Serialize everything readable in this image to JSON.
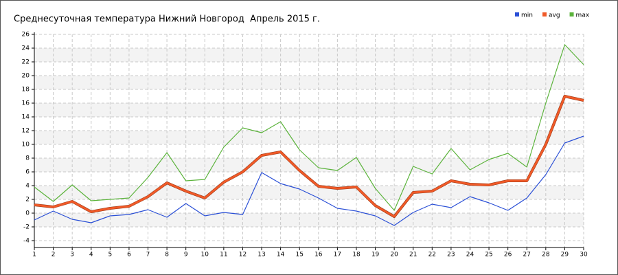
{
  "chart_data": {
    "type": "line",
    "title": "Среднесуточная температура Нижний Новгород  Апрель 2015 г.",
    "x": [
      1,
      2,
      3,
      4,
      5,
      6,
      7,
      8,
      9,
      10,
      11,
      12,
      13,
      14,
      15,
      16,
      17,
      18,
      19,
      20,
      21,
      22,
      23,
      24,
      25,
      26,
      27,
      28,
      29,
      30
    ],
    "xlim": [
      1,
      30
    ],
    "xticks": [
      1,
      2,
      3,
      4,
      5,
      6,
      7,
      8,
      9,
      10,
      11,
      12,
      13,
      14,
      15,
      16,
      17,
      18,
      19,
      20,
      21,
      22,
      23,
      24,
      25,
      26,
      27,
      28,
      29,
      30
    ],
    "ylim": [
      -5,
      26
    ],
    "yticks": [
      -4,
      -2,
      0,
      2,
      4,
      6,
      8,
      10,
      12,
      14,
      16,
      18,
      20,
      22,
      24,
      26
    ],
    "grid": true,
    "legend": "top-right",
    "series": [
      {
        "name": "min",
        "color": "#2a4fd6",
        "values": [
          -1.0,
          0.3,
          -0.9,
          -1.4,
          -0.4,
          -0.2,
          0.5,
          -0.6,
          1.4,
          -0.4,
          0.1,
          -0.2,
          5.9,
          4.3,
          3.5,
          2.2,
          0.7,
          0.3,
          -0.4,
          -1.8,
          0.1,
          1.3,
          0.8,
          2.4,
          1.5,
          0.4,
          2.2,
          5.6,
          10.2,
          11.2
        ]
      },
      {
        "name": "avg",
        "color": "#f05a28",
        "values": [
          1.2,
          0.9,
          1.7,
          0.2,
          0.7,
          1.0,
          2.4,
          4.4,
          3.2,
          2.2,
          4.5,
          6.0,
          8.4,
          8.9,
          6.2,
          3.9,
          3.6,
          3.8,
          1.1,
          -0.5,
          3.0,
          3.2,
          4.7,
          4.2,
          4.1,
          4.7,
          4.7,
          10.0,
          17.0,
          16.4
        ]
      },
      {
        "name": "max",
        "color": "#5bb33b",
        "values": [
          3.8,
          1.7,
          4.1,
          1.8,
          2.0,
          2.2,
          5.2,
          8.8,
          4.7,
          4.9,
          9.6,
          12.4,
          11.7,
          13.3,
          9.2,
          6.6,
          6.2,
          8.1,
          3.6,
          0.4,
          6.8,
          5.7,
          9.4,
          6.3,
          7.8,
          8.7,
          6.7,
          16.0,
          24.5,
          21.6
        ]
      }
    ]
  }
}
